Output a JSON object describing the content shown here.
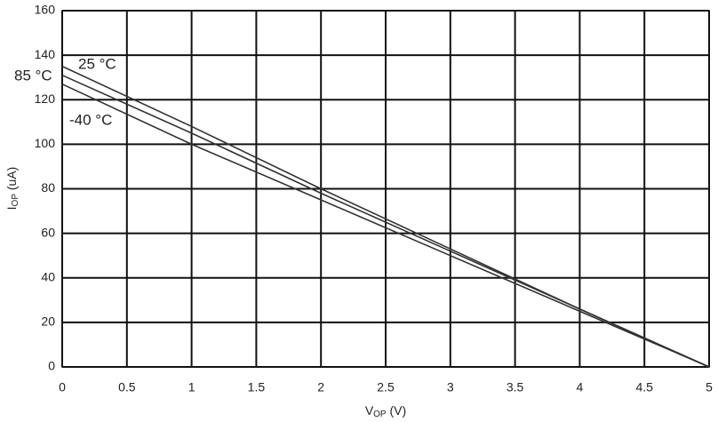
{
  "chart_data": {
    "type": "line",
    "x_label": {
      "main": "V",
      "sub": "OP",
      "rest": " (V)"
    },
    "y_label": {
      "main": "I",
      "sub": "OP",
      "rest": " (uA)"
    },
    "x": [
      0,
      1,
      2,
      3,
      4,
      5
    ],
    "series": [
      {
        "name": "25 °C",
        "color": "#333333",
        "values": [
          135,
          108,
          80,
          53,
          26,
          0
        ]
      },
      {
        "name": "85 °C",
        "color": "#333333",
        "values": [
          131,
          105,
          78,
          52,
          26,
          0
        ]
      },
      {
        "name": "-40 °C",
        "color": "#333333",
        "values": [
          127,
          100,
          75,
          50,
          25,
          0
        ]
      }
    ],
    "xlim": [
      0,
      5
    ],
    "xticks": [
      0,
      0.5,
      1,
      1.5,
      2,
      2.5,
      3,
      3.5,
      4,
      4.5,
      5
    ],
    "ylim": [
      0,
      160
    ],
    "yticks": [
      0,
      20,
      40,
      60,
      80,
      100,
      120,
      140,
      160
    ],
    "grid": true
  }
}
